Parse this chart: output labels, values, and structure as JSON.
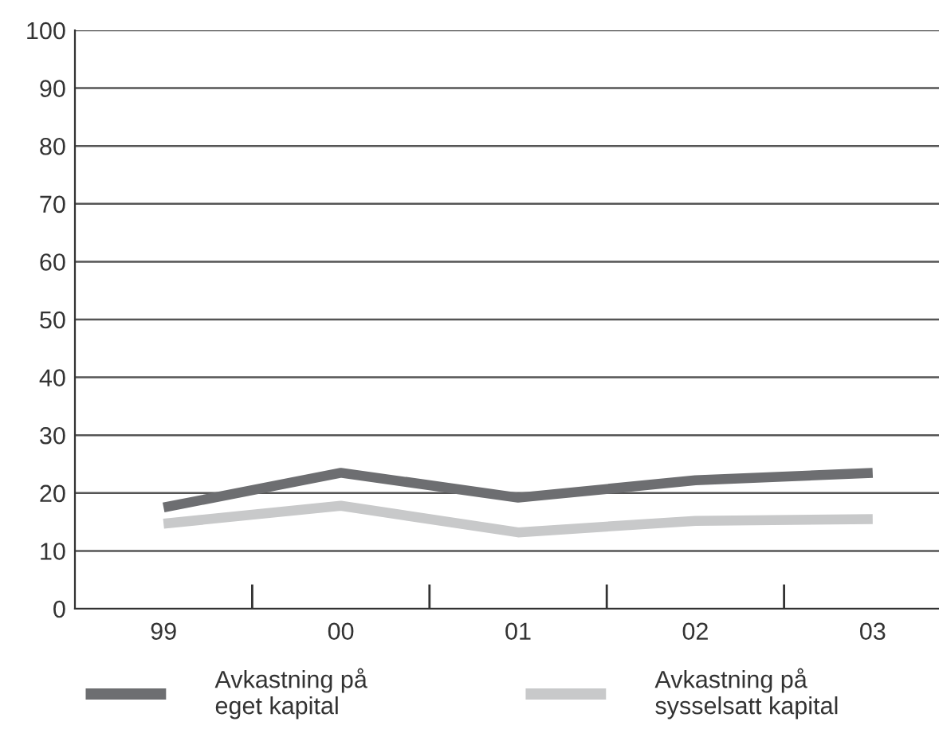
{
  "chart_data": {
    "type": "line",
    "categories": [
      "99",
      "00",
      "01",
      "02",
      "03"
    ],
    "series": [
      {
        "name": "Avkastning på\neget kapital",
        "color": "#6d6e71",
        "values": [
          17.5,
          23.5,
          19.2,
          22.2,
          23.5
        ]
      },
      {
        "name": "Avkastning på\nsysselsatt kapital",
        "color": "#c8c9ca",
        "values": [
          14.7,
          17.8,
          13.2,
          15.2,
          15.5
        ]
      }
    ],
    "ylim": [
      0,
      100
    ],
    "yticks": [
      0,
      10,
      20,
      30,
      40,
      50,
      60,
      70,
      80,
      90,
      100
    ],
    "grid": "y",
    "legend": "bottom",
    "marker": "none",
    "line_style": "solid"
  }
}
